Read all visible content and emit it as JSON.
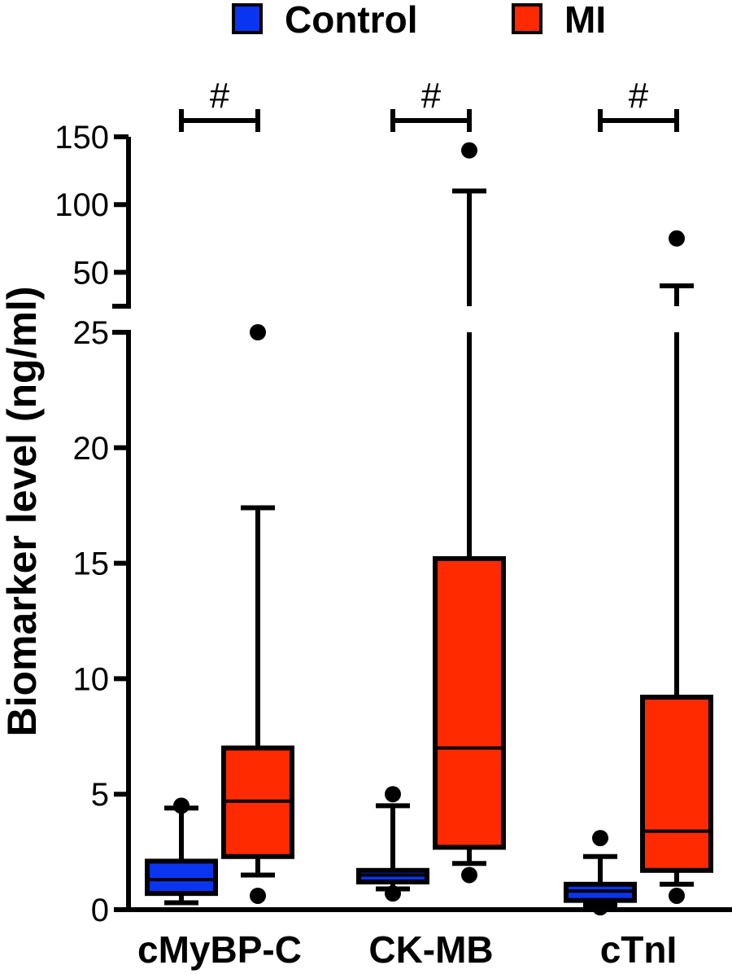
{
  "chart_data": {
    "type": "box",
    "ylabel": "Biomarker level (ng/ml)",
    "categories": [
      "cMyBP-C",
      "CK-MB",
      "cTnI"
    ],
    "legend": {
      "placement": "top",
      "entries": [
        {
          "name": "Control",
          "color": "#0a35f0"
        },
        {
          "name": "MI",
          "color": "#ff2a00"
        }
      ]
    },
    "axis": {
      "broken": true,
      "lower_range": [
        0,
        25
      ],
      "lower_ticks": [
        {
          "value": 0,
          "label": "0"
        },
        {
          "value": 5,
          "label": "5"
        },
        {
          "value": 10,
          "label": "10"
        },
        {
          "value": 15,
          "label": "15"
        },
        {
          "value": 20,
          "label": "20"
        },
        {
          "value": 25,
          "label": "25"
        }
      ],
      "upper_range": [
        25,
        150
      ],
      "upper_ticks": [
        {
          "value": 50,
          "label": "50"
        },
        {
          "value": 100,
          "label": "100"
        },
        {
          "value": 150,
          "label": "150"
        }
      ]
    },
    "series": [
      {
        "name": "Control",
        "color": "#0a35f0",
        "boxes": [
          {
            "category": "cMyBP-C",
            "whisker_low": 0.3,
            "q1": 0.7,
            "median": 1.3,
            "q3": 2.1,
            "whisker_high": 4.4,
            "outliers": [
              4.5
            ]
          },
          {
            "category": "CK-MB",
            "whisker_low": 0.9,
            "q1": 1.2,
            "median": 1.5,
            "q3": 1.7,
            "whisker_high": 4.5,
            "outliers": [
              5.0,
              0.7
            ]
          },
          {
            "category": "cTnI",
            "whisker_low": 0.2,
            "q1": 0.4,
            "median": 0.8,
            "q3": 1.1,
            "whisker_high": 2.3,
            "outliers": [
              3.1,
              0.1
            ]
          }
        ]
      },
      {
        "name": "MI",
        "color": "#ff2a00",
        "boxes": [
          {
            "category": "cMyBP-C",
            "whisker_low": 1.5,
            "q1": 2.3,
            "median": 4.7,
            "q3": 7.0,
            "whisker_high": 17.4,
            "outliers": [
              25.0,
              0.6
            ]
          },
          {
            "category": "CK-MB",
            "whisker_low": 2.0,
            "q1": 2.7,
            "median": 7.0,
            "q3": 15.2,
            "whisker_high": 110,
            "outliers": [
              140,
              1.5
            ]
          },
          {
            "category": "cTnI",
            "whisker_low": 1.1,
            "q1": 1.7,
            "median": 3.4,
            "q3": 9.2,
            "whisker_high": 40,
            "outliers": [
              75,
              0.6
            ]
          }
        ]
      }
    ],
    "significance": [
      {
        "category": "cMyBP-C",
        "label": "#"
      },
      {
        "category": "CK-MB",
        "label": "#"
      },
      {
        "category": "cTnI",
        "label": "#"
      }
    ]
  }
}
